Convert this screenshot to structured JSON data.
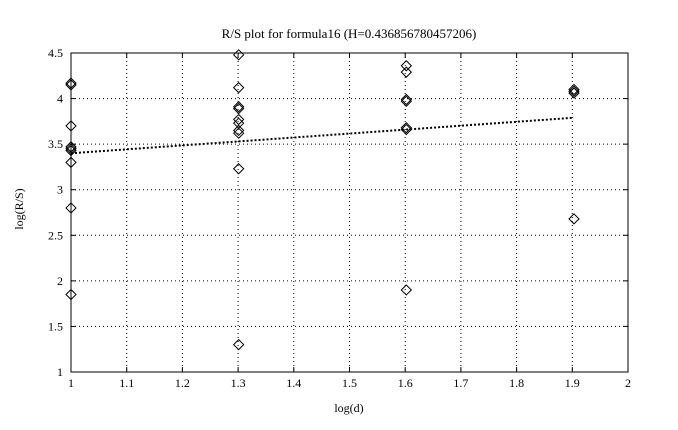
{
  "chart_data": {
    "type": "scatter",
    "title": "R/S plot for formula16 (H=0.436856780457206)",
    "xlabel": "log(d)",
    "ylabel": "log(R/S)",
    "xlim": [
      1,
      2
    ],
    "ylim": [
      1,
      4.5
    ],
    "grid": true,
    "x_ticks": [
      1,
      1.1,
      1.2,
      1.3,
      1.4,
      1.5,
      1.6,
      1.7,
      1.8,
      1.9,
      2
    ],
    "x_tick_labels": [
      "1",
      "1.1",
      "1.2",
      "1.3",
      "1.4",
      "1.5",
      "1.6",
      "1.7",
      "1.8",
      "1.9",
      "2"
    ],
    "y_ticks": [
      1,
      1.5,
      2,
      2.5,
      3,
      3.5,
      4,
      4.5
    ],
    "y_tick_labels": [
      "1",
      "1.5",
      "2",
      "2.5",
      "3",
      "3.5",
      "4",
      "4.5"
    ],
    "series": [
      {
        "marker": "diamond",
        "points": [
          [
            1.0,
            4.17
          ],
          [
            1.0,
            4.15
          ],
          [
            1.0,
            3.7
          ],
          [
            1.0,
            3.47
          ],
          [
            1.0,
            3.45
          ],
          [
            1.0,
            3.43
          ],
          [
            1.0,
            3.3
          ],
          [
            1.0,
            2.8
          ],
          [
            1.0,
            1.85
          ],
          [
            1.301,
            4.48
          ],
          [
            1.301,
            4.12
          ],
          [
            1.301,
            3.91
          ],
          [
            1.301,
            3.89
          ],
          [
            1.301,
            3.77
          ],
          [
            1.301,
            3.73
          ],
          [
            1.301,
            3.65
          ],
          [
            1.301,
            3.62
          ],
          [
            1.301,
            3.23
          ],
          [
            1.301,
            1.3
          ],
          [
            1.602,
            4.36
          ],
          [
            1.602,
            4.29
          ],
          [
            1.602,
            3.99
          ],
          [
            1.602,
            3.97
          ],
          [
            1.602,
            3.68
          ],
          [
            1.602,
            3.66
          ],
          [
            1.602,
            1.9
          ],
          [
            1.903,
            4.1
          ],
          [
            1.903,
            4.08
          ],
          [
            1.903,
            4.06
          ],
          [
            1.903,
            2.68
          ]
        ]
      },
      {
        "style": "dotted-line",
        "points": [
          [
            1.0,
            3.4
          ],
          [
            1.903,
            3.79
          ]
        ]
      }
    ]
  }
}
